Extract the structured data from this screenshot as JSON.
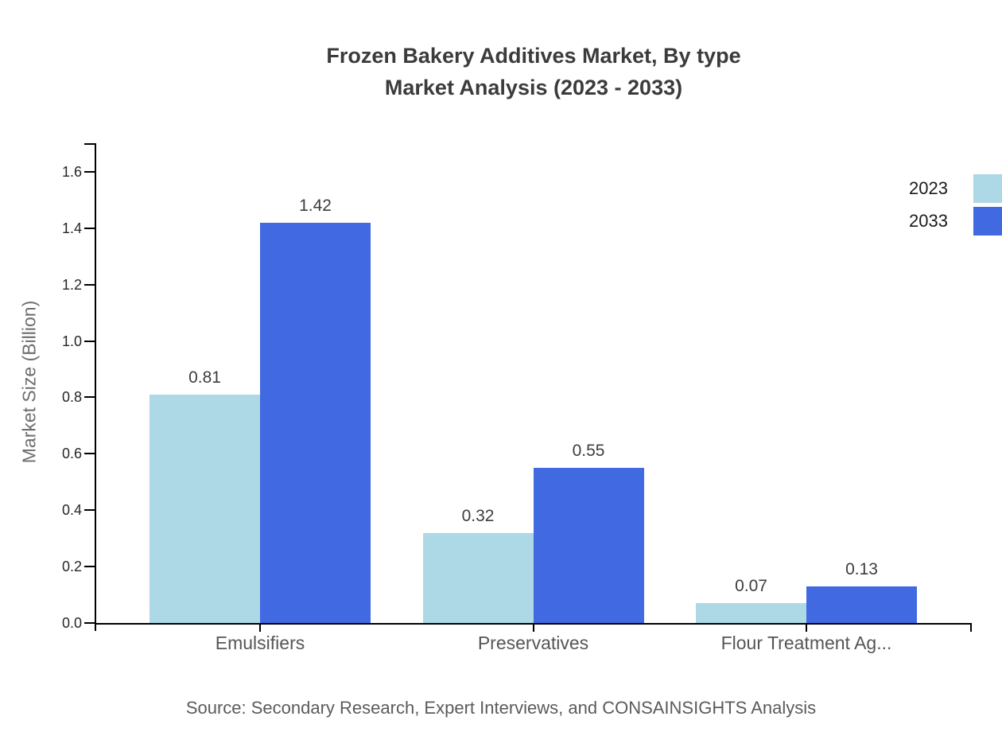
{
  "title": {
    "line1": "Frozen Bakery Additives Market, By type",
    "line2": "Market Analysis (2023 - 2033)"
  },
  "source": "Source: Secondary Research, Expert Interviews, and CONSAINSIGHTS Analysis",
  "chart_data": {
    "type": "bar",
    "title": "Frozen Bakery Additives Market, By type Market Analysis (2023 - 2033)",
    "categories": [
      "Emulsifiers",
      "Preservatives",
      "Flour Treatment Ag..."
    ],
    "series": [
      {
        "name": "2023",
        "color": "#ADD8E6",
        "values": [
          0.81,
          0.32,
          0.07
        ]
      },
      {
        "name": "2033",
        "color": "#4169E1",
        "values": [
          1.42,
          0.55,
          0.13
        ]
      }
    ],
    "ylabel": "Market Size (Billion)",
    "ylim": [
      0,
      1.7
    ],
    "yticks": [
      0.0,
      0.2,
      0.4,
      0.6,
      0.8,
      1.0,
      1.2,
      1.4,
      1.6
    ],
    "grid": false,
    "legend_position": "top-right",
    "value_labels": true,
    "axis_color": "#000000"
  }
}
